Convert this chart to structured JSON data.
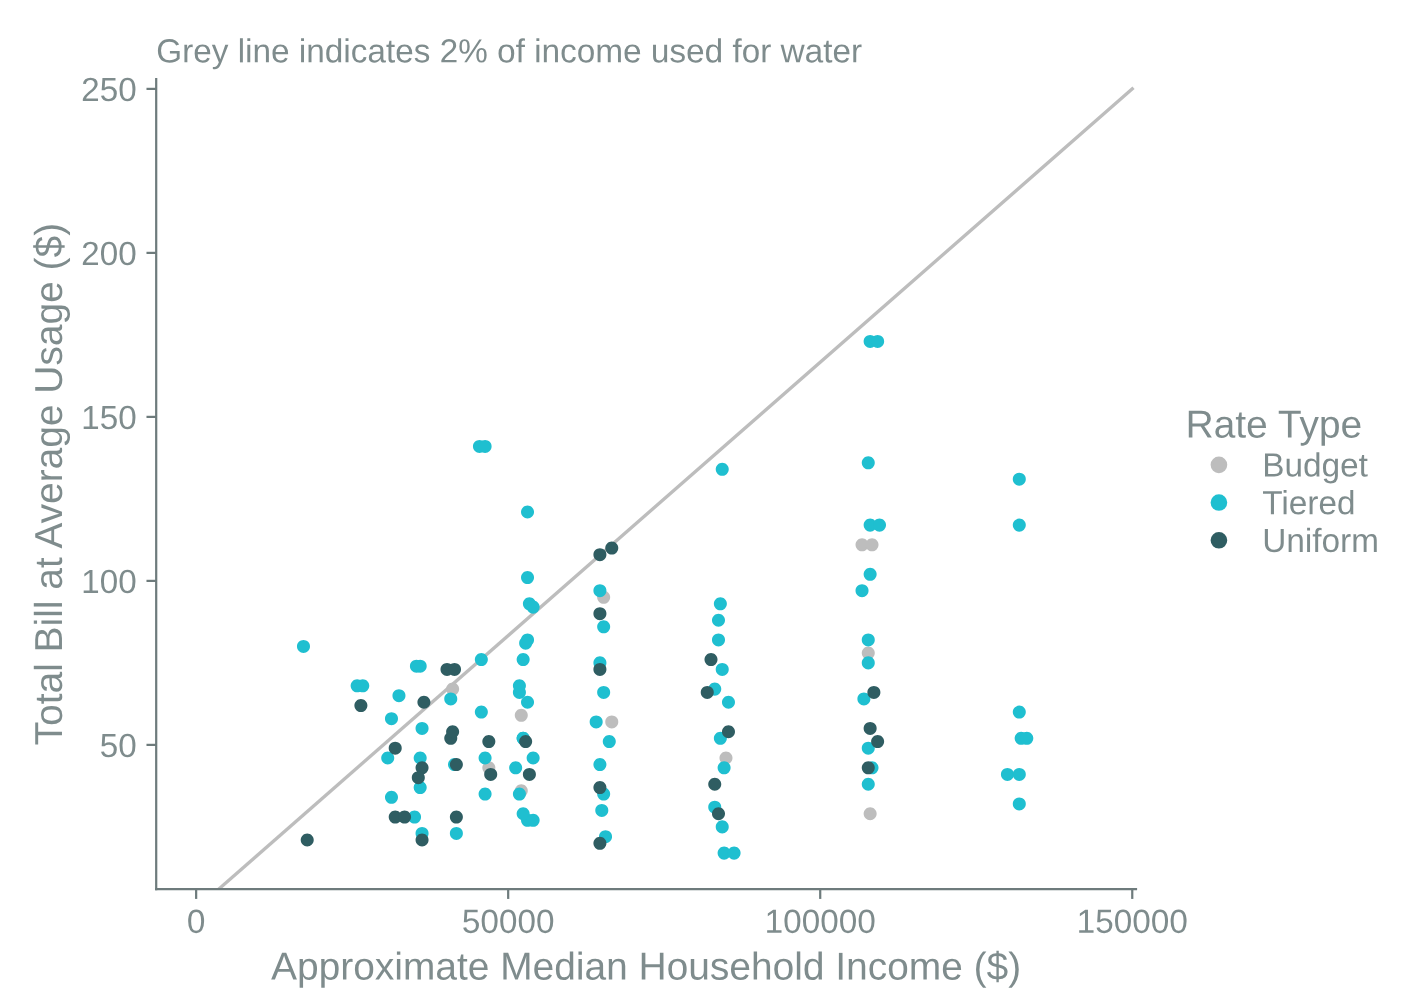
{
  "chart_data": {
    "type": "scatter",
    "title": "Grey line indicates 2% of income used for water",
    "xlabel": "Approximate Median Household Income ($)",
    "ylabel": "Total Bill at Average Usage ($)",
    "legend_title": "Rate Type",
    "xlim": [
      -6400,
      150600
    ],
    "ylim": [
      6,
      253
    ],
    "xticks": [
      0,
      50000,
      100000,
      150000
    ],
    "yticks": [
      50,
      100,
      150,
      200,
      250
    ],
    "grid": false,
    "legend": "right",
    "marker": "circle",
    "series": [
      {
        "type": "line",
        "marker": "none",
        "color": "#bdbdbd",
        "x": [
          3600,
          150000
        ],
        "values": [
          6,
          250
        ]
      },
      {
        "name": "Budget",
        "color": "#bdbdbd",
        "x": [
          41100,
          65300,
          52100,
          52100,
          84900,
          106700,
          108300,
          107700,
          108000,
          46900,
          66600
        ],
        "values": [
          67,
          95,
          59,
          36,
          46,
          111,
          111,
          78,
          29,
          43,
          57
        ]
      },
      {
        "name": "Tiered",
        "color": "#1fbfd0",
        "x": [
          17200,
          25800,
          26700,
          32500,
          31300,
          30700,
          31300,
          35900,
          35300,
          36200,
          35900,
          35900,
          35000,
          36200,
          40800,
          41400,
          41700,
          45700,
          45700,
          46300,
          46300,
          53400,
          53100,
          51800,
          52400,
          53100,
          51200,
          45400,
          46300,
          53100,
          53100,
          54000,
          52800,
          52400,
          51800,
          53100,
          52400,
          54000,
          51800,
          52400,
          54000,
          64700,
          65300,
          64700,
          65300,
          64100,
          66200,
          64700,
          65300,
          65000,
          65600,
          84300,
          84000,
          83700,
          83700,
          84300,
          83100,
          85300,
          84000,
          84600,
          83100,
          84300,
          84600,
          86200,
          107700,
          108000,
          109500,
          108000,
          106700,
          107700,
          107700,
          107000,
          107700,
          108300,
          107700,
          108000,
          109200,
          131900,
          131900,
          131900,
          132200,
          133100,
          130000,
          131900,
          131900
        ],
        "values": [
          80,
          68,
          68,
          65,
          58,
          46,
          34,
          74,
          74,
          55,
          46,
          37,
          28,
          23,
          64,
          44,
          23,
          76,
          60,
          46,
          35,
          93,
          82,
          66,
          52,
          27,
          43,
          141,
          141,
          121,
          101,
          92,
          81,
          76,
          68,
          63,
          52,
          46,
          35,
          29,
          27,
          97,
          86,
          75,
          66,
          57,
          51,
          44,
          35,
          30,
          22,
          134,
          93,
          88,
          82,
          73,
          67,
          63,
          52,
          43,
          31,
          25,
          17,
          17,
          136,
          117,
          117,
          102,
          97,
          82,
          75,
          64,
          49,
          43,
          38,
          173,
          173,
          131,
          117,
          60,
          52,
          52,
          41,
          41,
          32
        ]
      },
      {
        "name": "Uniform",
        "color": "#2f5d62",
        "x": [
          17800,
          26400,
          31900,
          33400,
          36200,
          36500,
          40200,
          41400,
          35600,
          41700,
          40800,
          46900,
          47200,
          31900,
          36200,
          41700,
          53400,
          64700,
          66600,
          64700,
          64700,
          64700,
          64700,
          52800,
          41100,
          82500,
          81900,
          85300,
          83100,
          83700,
          108600,
          108000,
          107700,
          109200
        ],
        "values": [
          21,
          62,
          28,
          28,
          43,
          63,
          73,
          73,
          40,
          44,
          52,
          51,
          41,
          49,
          21,
          28,
          41,
          108,
          110,
          90,
          73,
          37,
          20,
          51,
          54,
          76,
          66,
          54,
          38,
          29,
          66,
          55,
          43,
          51
        ]
      }
    ]
  }
}
